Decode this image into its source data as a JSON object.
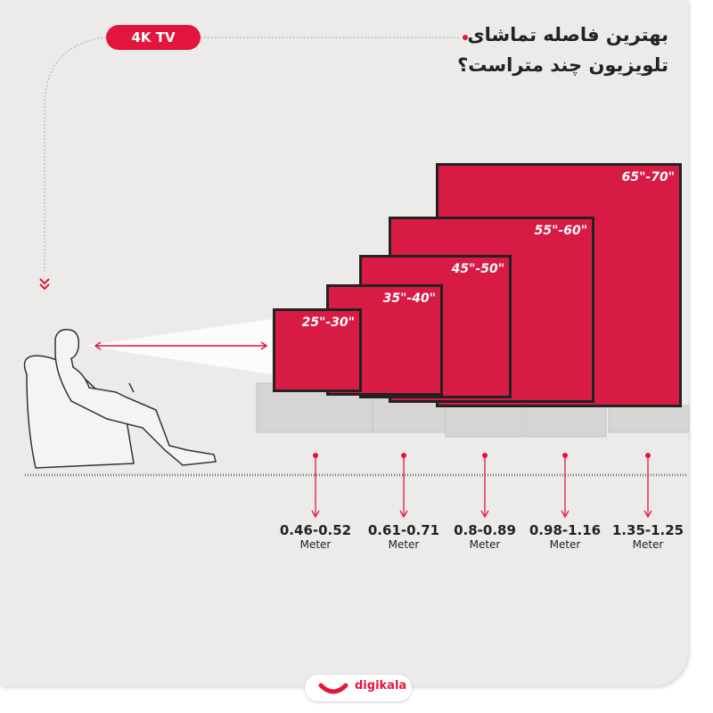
{
  "badge": "4K TV",
  "title": {
    "line1": "بهترین فاصله تماشای",
    "line2": "تلویزیون چند متراست؟"
  },
  "tvs": [
    {
      "size": "25\"-30\"",
      "distance": "0.46-0.52",
      "unit": "Meter"
    },
    {
      "size": "35\"-40\"",
      "distance": "0.61-0.71",
      "unit": "Meter"
    },
    {
      "size": "45\"-50\"",
      "distance": "0.8-0.89",
      "unit": "Meter"
    },
    {
      "size": "55\"-60\"",
      "distance": "0.98-1.16",
      "unit": "Meter"
    },
    {
      "size": "65\"-70\"",
      "distance": "1.35-1.25",
      "unit": "Meter"
    }
  ],
  "brand": "digikala",
  "colors": {
    "accent": "#e3153c",
    "screen": "#d81b45",
    "background": "#ecebea"
  }
}
